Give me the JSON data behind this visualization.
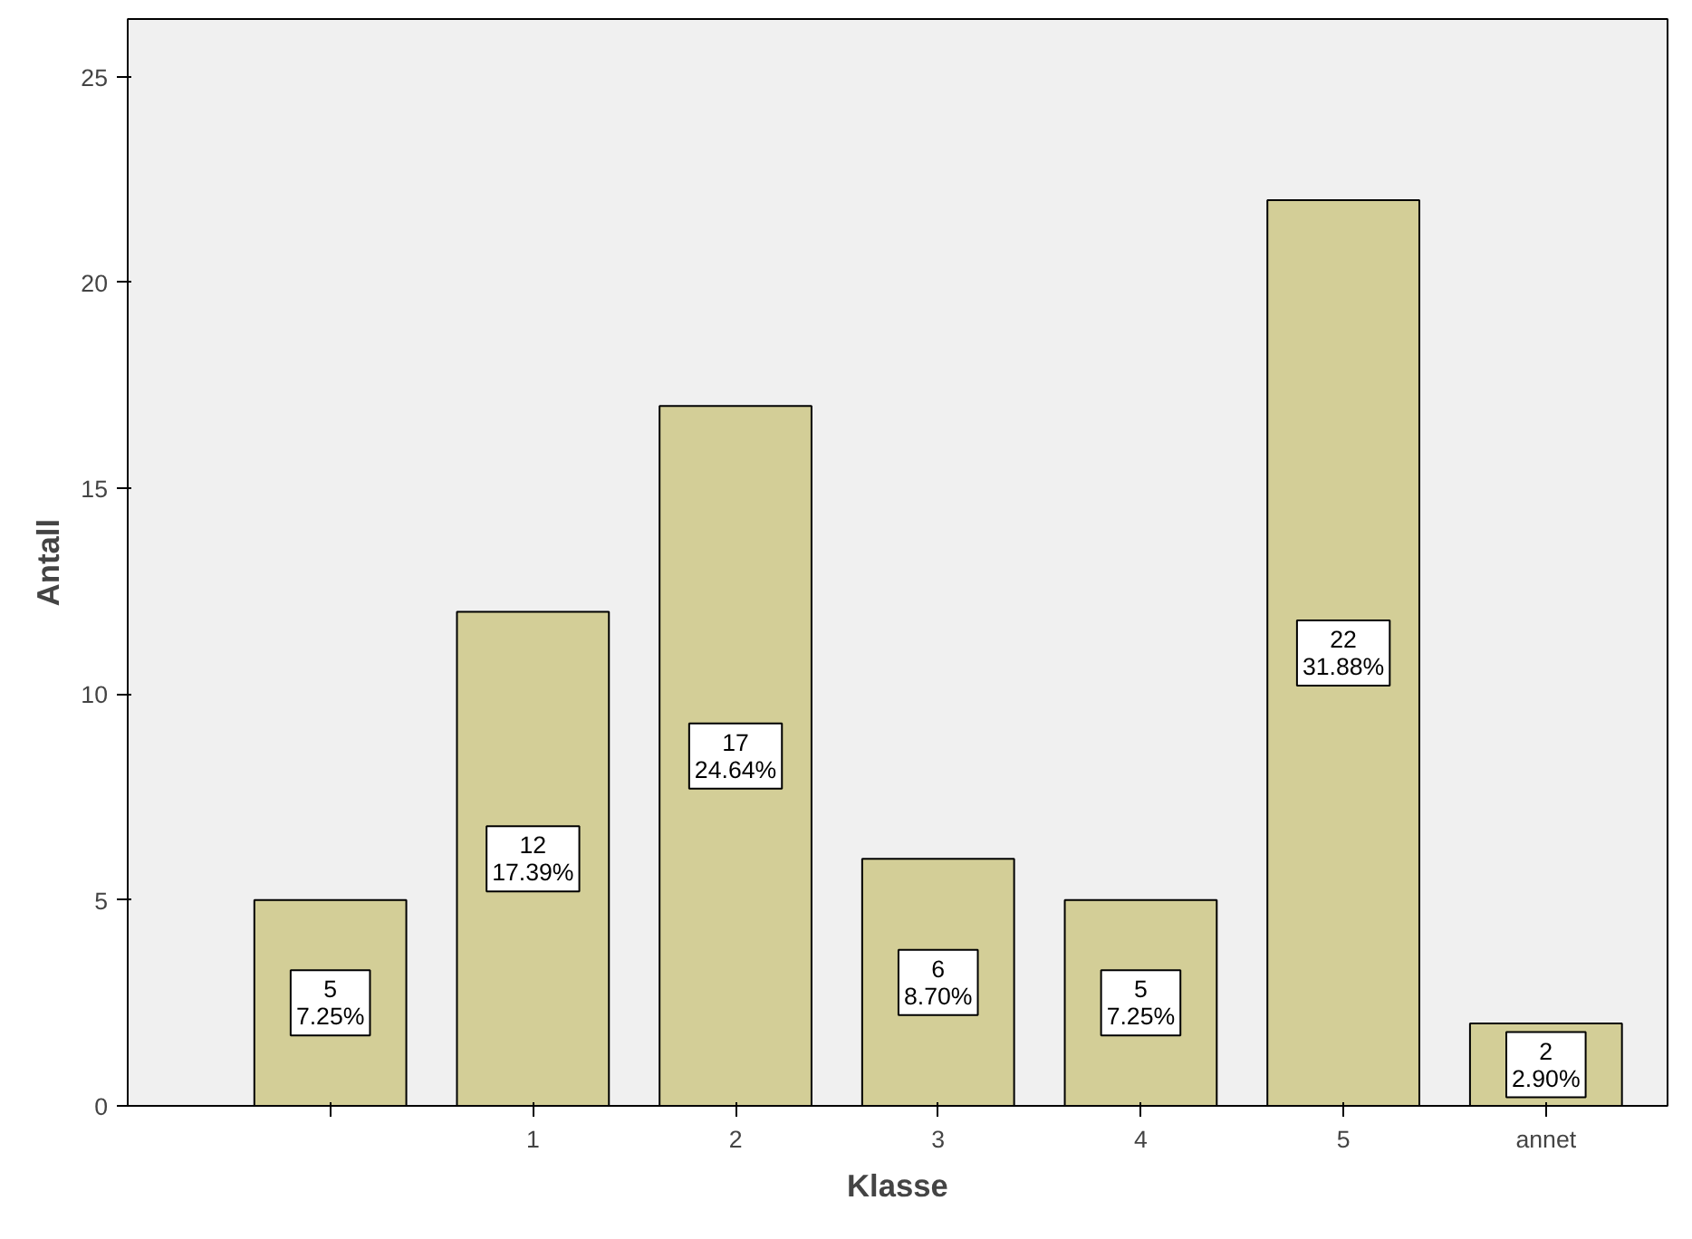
{
  "chart_data": {
    "type": "bar",
    "xlabel": "Klasse",
    "ylabel": "Antall",
    "categories": [
      null,
      "1",
      "2",
      "3",
      "4",
      "5",
      "annet"
    ],
    "values": [
      5,
      12,
      17,
      6,
      5,
      22,
      2
    ],
    "color": "#d3ce97",
    "value_labels": [
      "5\n7.25%",
      "12\n17.39%",
      "17\n24.64%",
      "6\n8.70%",
      "5\n7.25%",
      "22\n31.88%",
      "2\n2.90%"
    ],
    "ylim": [
      0,
      26.4
    ],
    "yticks": [
      0,
      5,
      10,
      15,
      20,
      25
    ],
    "grid": false
  }
}
